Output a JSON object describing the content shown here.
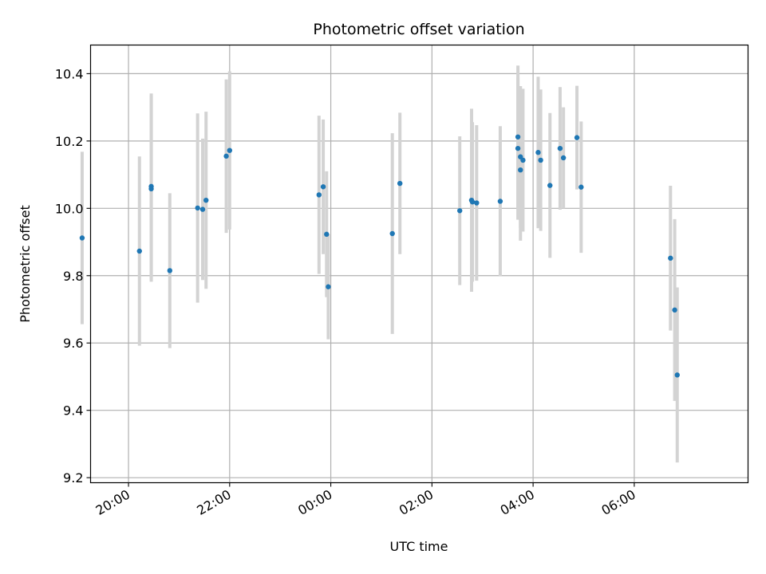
{
  "chart_data": {
    "type": "scatter",
    "title": "Photometric offset variation",
    "xlabel": "UTC time",
    "ylabel": "Photometric offset",
    "x_axis_kind": "datetime",
    "xlim": [
      "19:15",
      "08:15"
    ],
    "ylim": [
      9.185,
      10.485
    ],
    "x_ticks": [
      "20:00",
      "22:00",
      "00:00",
      "02:00",
      "04:00",
      "06:00"
    ],
    "y_ticks": [
      9.2,
      9.4,
      9.6,
      9.8,
      10.0,
      10.2,
      10.4
    ],
    "y_tick_labels": [
      "9.2",
      "9.4",
      "9.6",
      "9.8",
      "10.0",
      "10.2",
      "10.4"
    ],
    "grid": true,
    "colors": {
      "points": "#1f77b4",
      "error_bars": "#d3d3d3",
      "grid": "#b0b0b0"
    },
    "series": [
      {
        "points": [
          {
            "t": "19:05",
            "y": 9.912,
            "err": 0.256
          },
          {
            "t": "20:13",
            "y": 9.873,
            "err": 0.281
          },
          {
            "t": "20:27",
            "y": 10.065,
            "err": 0.276
          },
          {
            "t": "20:27",
            "y": 10.058,
            "err": 0.276
          },
          {
            "t": "20:49",
            "y": 9.815,
            "err": 0.23
          },
          {
            "t": "21:22",
            "y": 10.001,
            "err": 0.281
          },
          {
            "t": "21:28",
            "y": 9.997,
            "err": 0.21
          },
          {
            "t": "21:32",
            "y": 10.024,
            "err": 0.263
          },
          {
            "t": "21:56",
            "y": 10.155,
            "err": 0.228
          },
          {
            "t": "22:00",
            "y": 10.172,
            "err": 0.235
          },
          {
            "t": "23:46",
            "y": 10.04,
            "err": 0.235
          },
          {
            "t": "23:51",
            "y": 10.064,
            "err": 0.2
          },
          {
            "t": "23:55",
            "y": 9.923,
            "err": 0.187
          },
          {
            "t": "23:57",
            "y": 9.767,
            "err": 0.156
          },
          {
            "t": "01:13",
            "y": 9.925,
            "err": 0.298
          },
          {
            "t": "01:22",
            "y": 10.074,
            "err": 0.21
          },
          {
            "t": "02:33",
            "y": 9.993,
            "err": 0.221
          },
          {
            "t": "02:47",
            "y": 10.024,
            "err": 0.272
          },
          {
            "t": "02:48",
            "y": 10.019,
            "err": 0.237
          },
          {
            "t": "02:53",
            "y": 10.016,
            "err": 0.231
          },
          {
            "t": "03:21",
            "y": 10.021,
            "err": 0.223
          },
          {
            "t": "03:42",
            "y": 10.212,
            "err": 0.212
          },
          {
            "t": "03:42",
            "y": 10.178,
            "err": 0.212
          },
          {
            "t": "03:45",
            "y": 10.114,
            "err": 0.21
          },
          {
            "t": "03:45",
            "y": 10.153,
            "err": 0.21
          },
          {
            "t": "03:48",
            "y": 10.143,
            "err": 0.212
          },
          {
            "t": "04:06",
            "y": 10.166,
            "err": 0.225
          },
          {
            "t": "04:09",
            "y": 10.143,
            "err": 0.21
          },
          {
            "t": "04:20",
            "y": 10.068,
            "err": 0.215
          },
          {
            "t": "04:32",
            "y": 10.178,
            "err": 0.182
          },
          {
            "t": "04:36",
            "y": 10.15,
            "err": 0.15
          },
          {
            "t": "04:52",
            "y": 10.21,
            "err": 0.154
          },
          {
            "t": "04:57",
            "y": 10.063,
            "err": 0.195
          },
          {
            "t": "06:43",
            "y": 9.852,
            "err": 0.215
          },
          {
            "t": "06:48",
            "y": 9.698,
            "err": 0.27
          },
          {
            "t": "06:51",
            "y": 9.505,
            "err": 0.26
          }
        ]
      }
    ]
  }
}
